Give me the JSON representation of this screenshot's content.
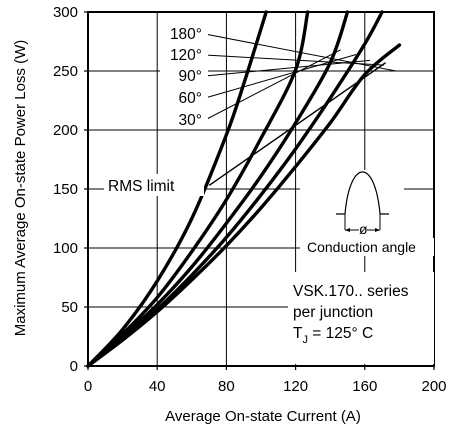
{
  "chart_data": {
    "type": "line",
    "title": "",
    "xlabel": "Average  On-state  Current  (A)",
    "ylabel": "Maximum  Average  On-state  Power  Loss  (W)",
    "xlim": [
      0,
      200
    ],
    "ylim": [
      0,
      300
    ],
    "xticks": [
      0,
      40,
      80,
      120,
      160,
      200
    ],
    "yticks": [
      0,
      50,
      100,
      150,
      200,
      250,
      300
    ],
    "grid": true,
    "series": [
      {
        "name": "180°",
        "x": [
          0,
          20,
          40,
          60,
          80,
          100,
          120,
          140,
          160,
          180
        ],
        "y": [
          0,
          22,
          46,
          73,
          102,
          134,
          169,
          206,
          247,
          272
        ]
      },
      {
        "name": "120°",
        "x": [
          0,
          20,
          40,
          60,
          80,
          100,
          120,
          140,
          160,
          170
        ],
        "y": [
          0,
          23,
          48,
          77,
          109,
          145,
          184,
          227,
          273,
          300
        ]
      },
      {
        "name": "90°",
        "x": [
          0,
          20,
          40,
          60,
          80,
          100,
          120,
          140,
          150
        ],
        "y": [
          0,
          25,
          52,
          84,
          121,
          161,
          206,
          257,
          300
        ]
      },
      {
        "name": "60°",
        "x": [
          0,
          20,
          40,
          60,
          80,
          100,
          120,
          127
        ],
        "y": [
          0,
          27,
          58,
          97,
          141,
          193,
          251,
          300
        ]
      },
      {
        "name": "30°",
        "x": [
          0,
          20,
          40,
          60,
          80,
          90,
          103
        ],
        "y": [
          0,
          31,
          72,
          125,
          196,
          239,
          300
        ]
      }
    ],
    "rms_limit": {
      "label": "RMS  limit",
      "x": [
        70,
        172
      ],
      "y": [
        153,
        257
      ]
    },
    "annotations": {
      "conduction_symbol": "ø",
      "conduction_label": "Conduction angle",
      "device_line1": "VSK.170..  series",
      "device_line2": "per  junction",
      "tj_prefix": "T",
      "tj_sub": "J",
      "tj_suffix": " = 125° C"
    }
  }
}
